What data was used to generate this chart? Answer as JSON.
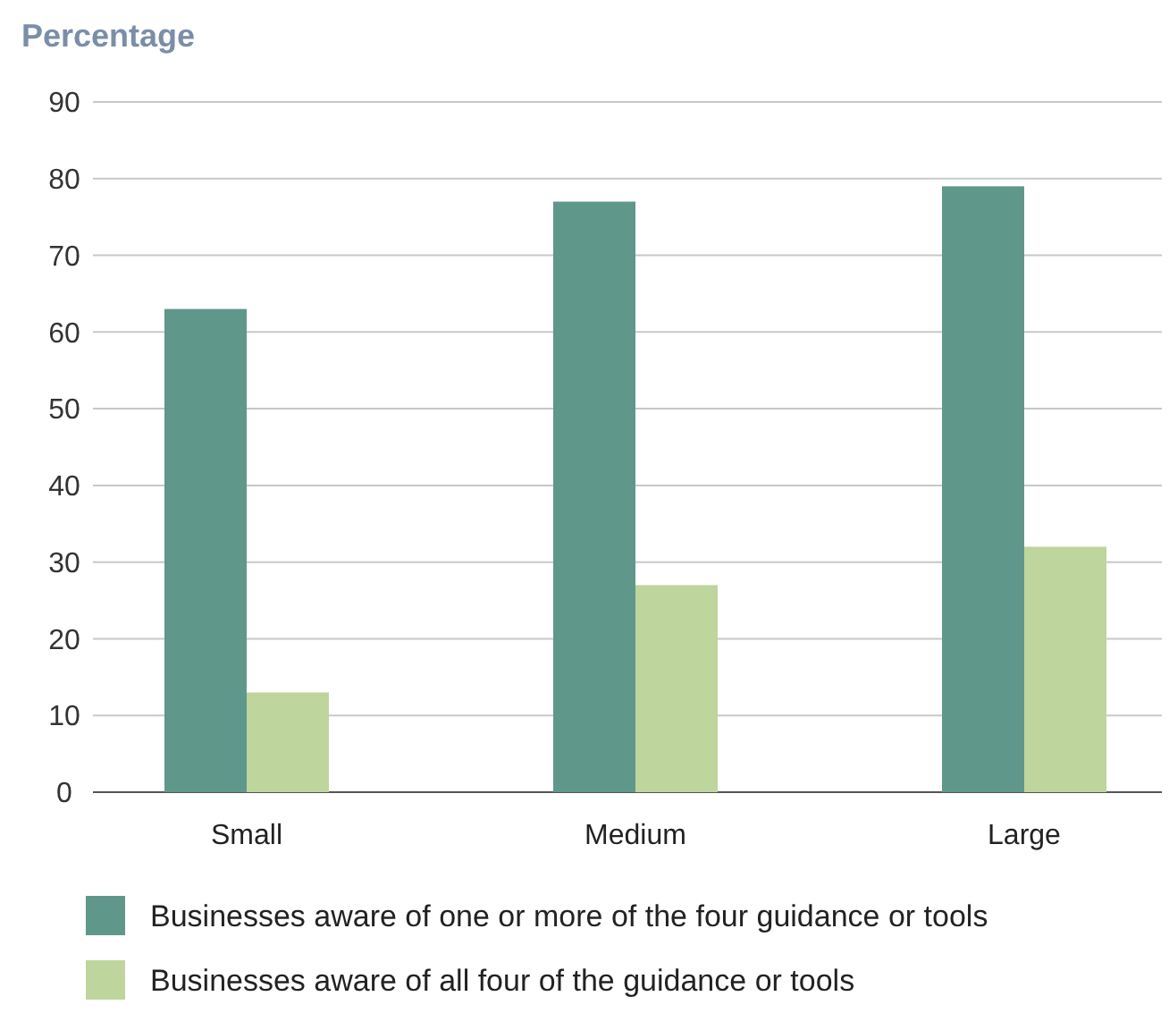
{
  "chart_data": {
    "type": "bar",
    "ylabel": "Percentage",
    "categories": [
      "Small",
      "Medium",
      "Large"
    ],
    "series": [
      {
        "name": "Businesses aware of one or more of the four guidance or tools",
        "color": "#5f978b",
        "values": [
          63,
          77,
          79
        ]
      },
      {
        "name": "Businesses aware of all four of the guidance or tools",
        "color": "#bed59d",
        "values": [
          13,
          27,
          32
        ]
      }
    ],
    "ylim": [
      0,
      90
    ],
    "yticks": [
      0,
      10,
      20,
      30,
      40,
      50,
      60,
      70,
      80,
      90
    ],
    "grid": "y",
    "legend": "bottom"
  }
}
